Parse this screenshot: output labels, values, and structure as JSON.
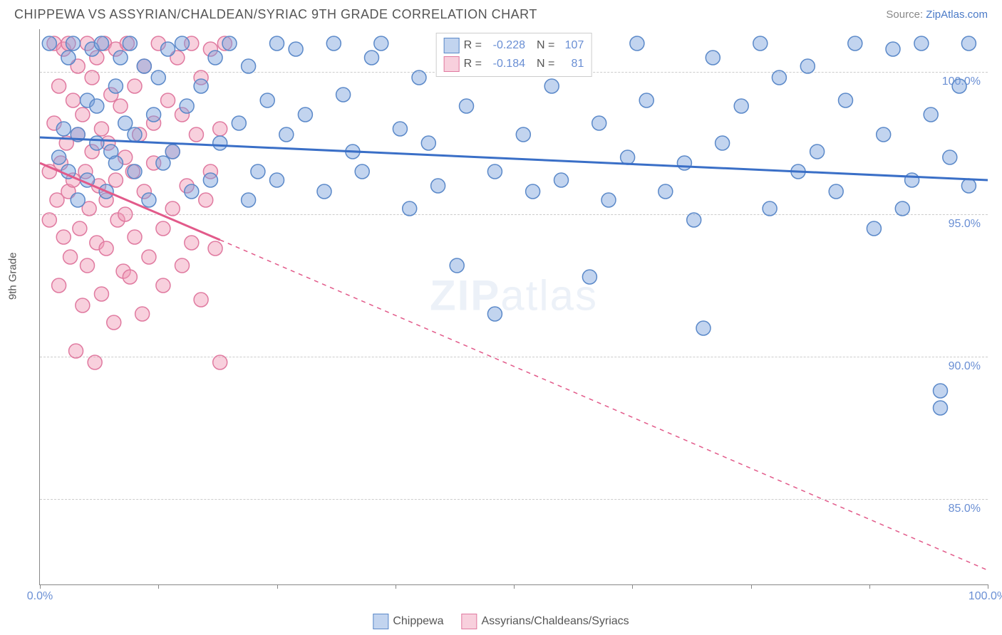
{
  "header": {
    "title": "CHIPPEWA VS ASSYRIAN/CHALDEAN/SYRIAC 9TH GRADE CORRELATION CHART",
    "source_prefix": "Source: ",
    "source_link": "ZipAtlas.com"
  },
  "chart": {
    "y_axis_title": "9th Grade",
    "xlim": [
      0,
      100
    ],
    "ylim": [
      82,
      101.5
    ],
    "y_ticks": [
      85.0,
      90.0,
      95.0,
      100.0
    ],
    "y_tick_labels": [
      "85.0%",
      "90.0%",
      "95.0%",
      "100.0%"
    ],
    "x_ticks": [
      0,
      12.5,
      25,
      37.5,
      50,
      62.5,
      75,
      87.5,
      100
    ],
    "x_tick_labels": {
      "0": "0.0%",
      "100": "100.0%"
    },
    "grid_color": "#cccccc",
    "axis_color": "#888888",
    "background_color": "#ffffff",
    "watermark": "ZIPatlas"
  },
  "series": {
    "blue": {
      "name": "Chippewa",
      "R": "-0.228",
      "N": "107",
      "fill": "rgba(120,160,220,0.45)",
      "stroke": "#5b89c9",
      "line_color": "#3a6fc7",
      "marker_r": 10,
      "trend": {
        "x1": 0,
        "y1": 97.7,
        "x2": 100,
        "y2": 96.2
      },
      "points": [
        [
          1,
          101
        ],
        [
          2,
          97
        ],
        [
          2.5,
          98
        ],
        [
          3,
          100.5
        ],
        [
          3,
          96.5
        ],
        [
          3.5,
          101
        ],
        [
          4,
          97.8
        ],
        [
          4,
          95.5
        ],
        [
          5,
          99
        ],
        [
          5,
          96.2
        ],
        [
          5.5,
          100.8
        ],
        [
          6,
          97.5
        ],
        [
          6,
          98.8
        ],
        [
          6.5,
          101
        ],
        [
          7,
          95.8
        ],
        [
          7.5,
          97.2
        ],
        [
          8,
          99.5
        ],
        [
          8,
          96.8
        ],
        [
          8.5,
          100.5
        ],
        [
          9,
          98.2
        ],
        [
          9.5,
          101
        ],
        [
          10,
          96.5
        ],
        [
          10,
          97.8
        ],
        [
          11,
          100.2
        ],
        [
          11.5,
          95.5
        ],
        [
          12,
          98.5
        ],
        [
          12.5,
          99.8
        ],
        [
          13,
          96.8
        ],
        [
          13.5,
          100.8
        ],
        [
          14,
          97.2
        ],
        [
          15,
          101
        ],
        [
          15.5,
          98.8
        ],
        [
          16,
          95.8
        ],
        [
          17,
          99.5
        ],
        [
          18,
          96.2
        ],
        [
          18.5,
          100.5
        ],
        [
          19,
          97.5
        ],
        [
          20,
          101
        ],
        [
          21,
          98.2
        ],
        [
          22,
          95.5
        ],
        [
          22,
          100.2
        ],
        [
          23,
          96.5
        ],
        [
          24,
          99
        ],
        [
          25,
          101
        ],
        [
          25,
          96.2
        ],
        [
          26,
          97.8
        ],
        [
          27,
          100.8
        ],
        [
          28,
          98.5
        ],
        [
          30,
          95.8
        ],
        [
          31,
          101
        ],
        [
          32,
          99.2
        ],
        [
          33,
          97.2
        ],
        [
          34,
          96.5
        ],
        [
          35,
          100.5
        ],
        [
          36,
          101
        ],
        [
          38,
          98
        ],
        [
          39,
          95.2
        ],
        [
          40,
          99.8
        ],
        [
          41,
          97.5
        ],
        [
          42,
          96
        ],
        [
          43,
          101
        ],
        [
          44,
          93.2
        ],
        [
          45,
          98.8
        ],
        [
          46,
          100.2
        ],
        [
          48,
          96.5
        ],
        [
          48,
          91.5
        ],
        [
          50,
          101
        ],
        [
          51,
          97.8
        ],
        [
          52,
          95.8
        ],
        [
          54,
          99.5
        ],
        [
          55,
          96.2
        ],
        [
          56,
          100.8
        ],
        [
          58,
          92.8
        ],
        [
          59,
          98.2
        ],
        [
          60,
          95.5
        ],
        [
          62,
          97
        ],
        [
          63,
          101
        ],
        [
          64,
          99
        ],
        [
          66,
          95.8
        ],
        [
          68,
          96.8
        ],
        [
          69,
          94.8
        ],
        [
          70,
          91
        ],
        [
          71,
          100.5
        ],
        [
          72,
          97.5
        ],
        [
          74,
          98.8
        ],
        [
          76,
          101
        ],
        [
          77,
          95.2
        ],
        [
          78,
          99.8
        ],
        [
          80,
          96.5
        ],
        [
          81,
          100.2
        ],
        [
          82,
          97.2
        ],
        [
          84,
          95.8
        ],
        [
          85,
          99
        ],
        [
          86,
          101
        ],
        [
          88,
          94.5
        ],
        [
          89,
          97.8
        ],
        [
          90,
          100.8
        ],
        [
          91,
          95.2
        ],
        [
          92,
          96.2
        ],
        [
          93,
          101
        ],
        [
          94,
          98.5
        ],
        [
          95,
          88.8
        ],
        [
          95,
          88.2
        ],
        [
          96,
          97
        ],
        [
          97,
          99.5
        ],
        [
          98,
          96
        ],
        [
          98,
          101
        ]
      ]
    },
    "pink": {
      "name": "Assyrians/Chaldeans/Syriacs",
      "R": "-0.184",
      "N": "81",
      "fill": "rgba(240,150,180,0.45)",
      "stroke": "#e07aa0",
      "line_color": "#e25a8a",
      "marker_r": 10,
      "trend_solid": {
        "x1": 0,
        "y1": 96.8,
        "x2": 19,
        "y2": 94.1
      },
      "trend_dash": {
        "x1": 19,
        "y1": 94.1,
        "x2": 100,
        "y2": 82.5
      },
      "points": [
        [
          1,
          96.5
        ],
        [
          1,
          94.8
        ],
        [
          1.5,
          101
        ],
        [
          1.5,
          98.2
        ],
        [
          1.8,
          95.5
        ],
        [
          2,
          99.5
        ],
        [
          2,
          92.5
        ],
        [
          2.2,
          96.8
        ],
        [
          2.5,
          100.8
        ],
        [
          2.5,
          94.2
        ],
        [
          2.8,
          97.5
        ],
        [
          3,
          101
        ],
        [
          3,
          95.8
        ],
        [
          3.2,
          93.5
        ],
        [
          3.5,
          99
        ],
        [
          3.5,
          96.2
        ],
        [
          3.8,
          90.2
        ],
        [
          4,
          100.2
        ],
        [
          4,
          97.8
        ],
        [
          4.2,
          94.5
        ],
        [
          4.5,
          98.5
        ],
        [
          4.5,
          91.8
        ],
        [
          4.8,
          96.5
        ],
        [
          5,
          101
        ],
        [
          5,
          93.2
        ],
        [
          5.2,
          95.2
        ],
        [
          5.5,
          99.8
        ],
        [
          5.5,
          97.2
        ],
        [
          5.8,
          89.8
        ],
        [
          6,
          94
        ],
        [
          6,
          100.5
        ],
        [
          6.2,
          96
        ],
        [
          6.5,
          98
        ],
        [
          6.5,
          92.2
        ],
        [
          6.8,
          101
        ],
        [
          7,
          95.5
        ],
        [
          7,
          93.8
        ],
        [
          7.2,
          97.5
        ],
        [
          7.5,
          99.2
        ],
        [
          7.8,
          91.2
        ],
        [
          8,
          96.2
        ],
        [
          8,
          100.8
        ],
        [
          8.2,
          94.8
        ],
        [
          8.5,
          98.8
        ],
        [
          8.8,
          93
        ],
        [
          9,
          97
        ],
        [
          9,
          95
        ],
        [
          9.2,
          101
        ],
        [
          9.5,
          92.8
        ],
        [
          9.8,
          96.5
        ],
        [
          10,
          99.5
        ],
        [
          10,
          94.2
        ],
        [
          10.5,
          97.8
        ],
        [
          10.8,
          91.5
        ],
        [
          11,
          100.2
        ],
        [
          11,
          95.8
        ],
        [
          11.5,
          93.5
        ],
        [
          12,
          98.2
        ],
        [
          12,
          96.8
        ],
        [
          12.5,
          101
        ],
        [
          13,
          94.5
        ],
        [
          13,
          92.5
        ],
        [
          13.5,
          99
        ],
        [
          14,
          97.2
        ],
        [
          14,
          95.2
        ],
        [
          14.5,
          100.5
        ],
        [
          15,
          93.2
        ],
        [
          15,
          98.5
        ],
        [
          15.5,
          96
        ],
        [
          16,
          101
        ],
        [
          16,
          94
        ],
        [
          16.5,
          97.8
        ],
        [
          17,
          99.8
        ],
        [
          17,
          92
        ],
        [
          17.5,
          95.5
        ],
        [
          18,
          100.8
        ],
        [
          18,
          96.5
        ],
        [
          18.5,
          93.8
        ],
        [
          19,
          98
        ],
        [
          19,
          89.8
        ],
        [
          19.5,
          101
        ]
      ]
    }
  },
  "legend_top": {
    "R_label": "R =",
    "N_label": "N ="
  },
  "legend_bottom": {
    "items": [
      "Chippewa",
      "Assyrians/Chaldeans/Syriacs"
    ]
  }
}
